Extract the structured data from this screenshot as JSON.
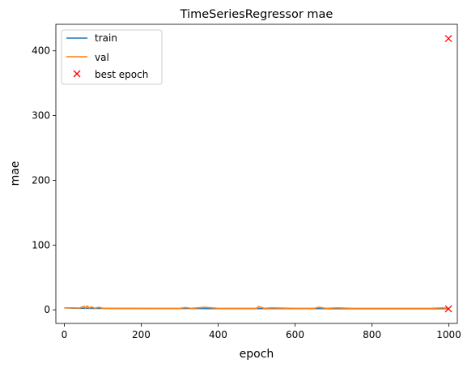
{
  "chart_data": {
    "type": "line",
    "title": "TimeSeriesRegressor mae",
    "xlabel": "epoch",
    "ylabel": "mae",
    "xlim": [
      -22,
      1022
    ],
    "ylim": [
      -21,
      441
    ],
    "xticks": [
      0,
      200,
      400,
      600,
      800,
      1000
    ],
    "yticks": [
      0,
      100,
      200,
      300,
      400
    ],
    "grid": false,
    "legend_position": "top-left",
    "series": [
      {
        "name": "train",
        "color": "#1f77b4",
        "x": [
          0,
          25,
          50,
          75,
          100,
          150,
          200,
          250,
          300,
          350,
          400,
          450,
          500,
          550,
          600,
          650,
          700,
          750,
          800,
          850,
          900,
          950,
          999
        ],
        "values": [
          3.2,
          2.6,
          2.4,
          2.3,
          2.2,
          2.1,
          2.1,
          2.0,
          2.0,
          2.0,
          1.9,
          1.9,
          1.9,
          1.9,
          1.9,
          1.9,
          1.8,
          1.8,
          1.8,
          1.8,
          1.8,
          1.8,
          1.8
        ]
      },
      {
        "name": "val",
        "color": "#ff7f0e",
        "x": [
          0,
          20,
          40,
          52,
          55,
          60,
          65,
          70,
          80,
          90,
          100,
          150,
          200,
          250,
          300,
          315,
          330,
          365,
          400,
          450,
          500,
          505,
          520,
          540,
          600,
          650,
          662,
          680,
          710,
          750,
          800,
          850,
          900,
          950,
          985,
          999
        ],
        "values": [
          3.0,
          3.0,
          2.8,
          5.5,
          2.5,
          6.0,
          2.5,
          4.5,
          2.5,
          4.0,
          2.4,
          2.4,
          2.3,
          2.3,
          2.3,
          3.5,
          2.3,
          4.0,
          2.3,
          2.3,
          2.3,
          5.0,
          2.4,
          3.0,
          2.3,
          2.3,
          4.0,
          2.3,
          3.0,
          2.3,
          2.3,
          2.3,
          2.3,
          2.3,
          3.0,
          2.3
        ]
      }
    ],
    "markers": {
      "name": "best epoch",
      "color": "#ff0000",
      "symbol": "x",
      "points": [
        {
          "x": 999,
          "y": 419
        },
        {
          "x": 999,
          "y": 1.5
        }
      ]
    }
  }
}
